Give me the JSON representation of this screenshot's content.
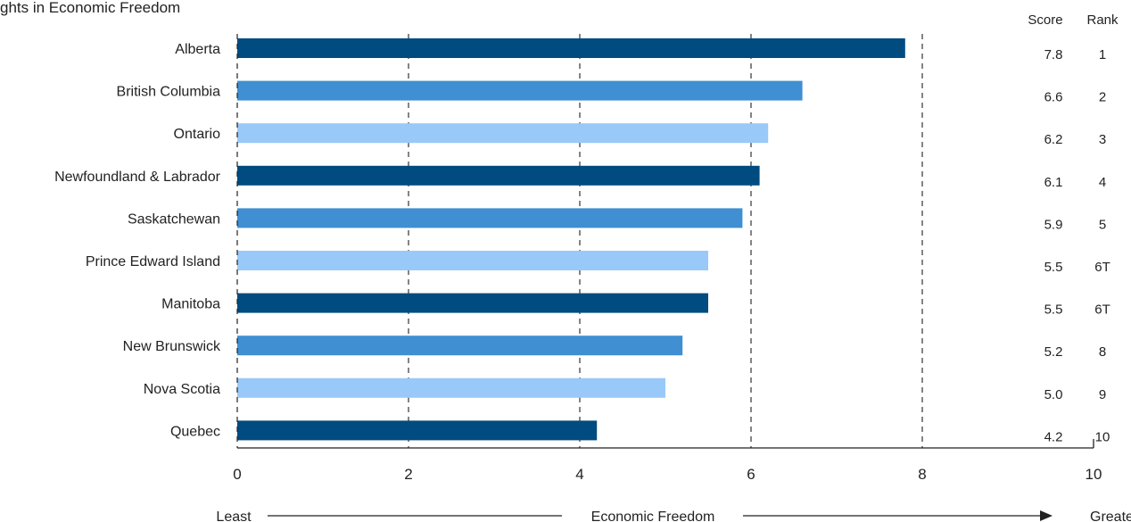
{
  "chart_data": {
    "type": "bar",
    "orientation": "horizontal",
    "title": "ghts in Economic Freedom",
    "categories": [
      "Alberta",
      "British Columbia",
      "Ontario",
      "Newfoundland & Labrador",
      "Saskatchewan",
      "Prince Edward Island",
      "Manitoba",
      "New Brunswick",
      "Nova Scotia",
      "Quebec"
    ],
    "values": [
      7.8,
      6.6,
      6.2,
      6.1,
      5.9,
      5.5,
      5.5,
      5.2,
      5.0,
      4.2
    ],
    "score_labels": [
      "7.8",
      "6.6",
      "6.2",
      "6.1",
      "5.9",
      "5.5",
      "5.5",
      "5.2",
      "5.0",
      "4.2"
    ],
    "ranks": [
      "1",
      "2",
      "3",
      "4",
      "5",
      "6T",
      "6T",
      "8",
      "9",
      "10"
    ],
    "column_headers": {
      "score": "Score",
      "rank": "Rank"
    },
    "xlim": [
      0,
      10
    ],
    "xticks": [
      0,
      2,
      4,
      6,
      8,
      10
    ],
    "xtick_labels": [
      "0",
      "2",
      "4",
      "6",
      "8",
      "10"
    ],
    "grid": "vertical dashed",
    "xaxis_caption": {
      "left": "Least",
      "center": "Economic Freedom",
      "right": "Greatest"
    },
    "bar_colors": [
      "#004b7f",
      "#3f8fd2",
      "#99c9f8"
    ]
  }
}
